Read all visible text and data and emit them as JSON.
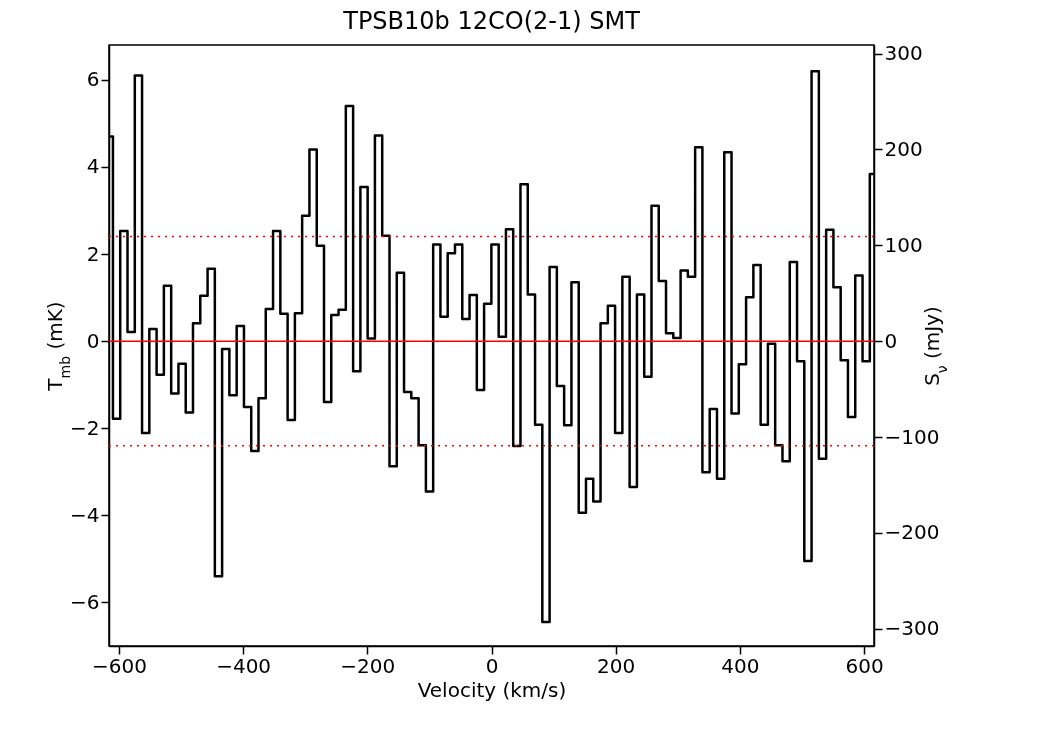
{
  "chart_data": {
    "type": "step",
    "title": "TPSB10b 12CO(2-1) SMT",
    "xlabel": "Velocity (km/s)",
    "ylabel": "T$_{mb}$ (mK)",
    "y2label": "S$_{ν}$ (mJy)",
    "xlim": [
      -616,
      616
    ],
    "xticks": [
      -600,
      -400,
      -200,
      0,
      200,
      400,
      600
    ],
    "ylim": [
      -7,
      6.8
    ],
    "yticks": [
      -6,
      -4,
      -2,
      0,
      2,
      4,
      6
    ],
    "y2lim": [
      -318,
      309
    ],
    "y2ticks": [
      -300,
      -200,
      -100,
      0,
      100,
      200,
      300
    ],
    "x": [
      -615.5,
      -603.8,
      -592.1,
      -580.3,
      -568.6,
      -556.9,
      -545.2,
      -533.5,
      -521.7,
      -510.0,
      -498.3,
      -486.6,
      -474.9,
      -463.1,
      -451.4,
      -439.7,
      -428.0,
      -416.3,
      -404.5,
      -392.8,
      -381.1,
      -369.4,
      -357.7,
      -345.9,
      -334.2,
      -322.5,
      -310.8,
      -299.1,
      -287.3,
      -275.6,
      -263.9,
      -252.2,
      -240.5,
      -228.7,
      -217.0,
      -205.3,
      -193.6,
      -181.9,
      -170.1,
      -158.4,
      -146.7,
      -135.0,
      -123.3,
      -111.5,
      -99.8,
      -88.1,
      -76.4,
      -64.7,
      -52.9,
      -41.2,
      -29.5,
      -17.8,
      -6.1,
      5.7,
      17.4,
      29.1,
      40.8,
      52.5,
      64.3,
      76.0,
      87.7,
      99.4,
      111.1,
      122.9,
      134.6,
      146.3,
      158.0,
      169.7,
      181.5,
      193.2,
      204.9,
      216.6,
      228.3,
      240.1,
      251.8,
      263.5,
      275.2,
      286.9,
      298.7,
      310.4,
      322.1,
      333.8,
      345.5,
      357.3,
      369.0,
      380.7,
      392.4,
      404.1,
      415.9,
      427.6,
      439.3,
      451.0,
      462.7,
      474.5,
      486.2,
      497.9,
      509.6,
      521.3,
      533.1,
      544.8,
      556.5,
      568.2,
      579.9,
      591.7,
      603.4,
      615.1
    ],
    "series": [
      {
        "color": "#000000",
        "values": [
          4.7,
          -1.78,
          2.53,
          0.21,
          6.1,
          -2.11,
          0.28,
          -0.77,
          1.27,
          -1.2,
          -0.52,
          -1.64,
          0.41,
          1.04,
          1.66,
          -5.4,
          -0.18,
          -1.24,
          0.35,
          -1.51,
          -2.52,
          -1.31,
          0.74,
          2.53,
          0.63,
          -1.81,
          0.64,
          2.88,
          4.4,
          2.19,
          -1.4,
          0.6,
          0.72,
          5.4,
          -0.69,
          3.54,
          0.06,
          4.72,
          2.42,
          -2.87,
          1.57,
          -1.17,
          -1.31,
          -2.39,
          -3.45,
          2.22,
          0.56,
          2.02,
          2.22,
          0.51,
          1.06,
          -1.12,
          0.86,
          2.22,
          0.1,
          2.57,
          -2.41,
          3.6,
          1.07,
          -1.92,
          -6.45,
          1.7,
          -1.03,
          -1.93,
          1.35,
          -3.94,
          -3.16,
          -3.68,
          0.41,
          0.81,
          -2.11,
          1.48,
          -3.35,
          1.07,
          -0.82,
          3.11,
          1.38,
          0.18,
          0.07,
          1.62,
          1.48,
          4.45,
          -3.01,
          -1.56,
          -3.16,
          4.34,
          -1.66,
          -0.53,
          1.01,
          1.75,
          -1.92,
          -0.06,
          -2.39,
          -2.76,
          1.82,
          -0.46,
          -5.05,
          6.2,
          -2.7,
          2.56,
          1.24,
          -0.44,
          -1.74,
          1.51,
          -0.46,
          3.84
        ]
      }
    ],
    "ref_lines": [
      {
        "axis": "y",
        "value": 0,
        "color": "#ff0000",
        "line_style": "solid"
      },
      {
        "axis": "y",
        "value": 2.4,
        "color": "#ff0000",
        "line_style": "dotted"
      },
      {
        "axis": "y",
        "value": -2.4,
        "color": "#ff0000",
        "line_style": "dotted"
      }
    ]
  }
}
